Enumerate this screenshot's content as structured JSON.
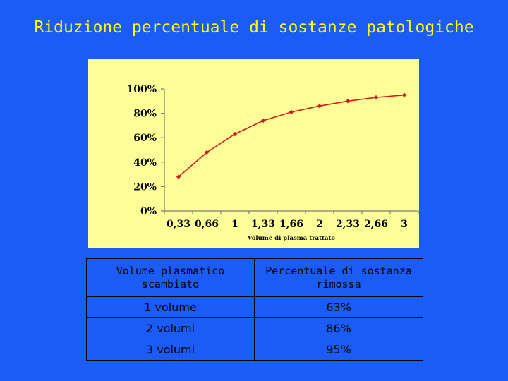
{
  "slide": {
    "title": "Riduzione percentuale di sostanze patologiche"
  },
  "colors": {
    "background": "#1a5cf5",
    "title": "#ffff00",
    "chart_panel": "#ffff99",
    "series": "#d81818"
  },
  "chart_data": {
    "type": "line",
    "title": "",
    "xlabel": "Volume di plasma trattato",
    "ylabel": "",
    "categories": [
      "0,33",
      "0,66",
      "1",
      "1,33",
      "1,66",
      "2",
      "2,33",
      "2,66",
      "3"
    ],
    "y_ticks": [
      "0%",
      "20%",
      "40%",
      "60%",
      "80%",
      "100%"
    ],
    "ylim": [
      0,
      100
    ],
    "grid": false,
    "legend": "none",
    "series": [
      {
        "values": [
          28,
          48,
          63,
          74,
          81,
          86,
          90,
          93,
          95
        ]
      }
    ]
  },
  "table": {
    "headers": [
      "Volume plasmatico scambiato",
      "Percentuale di sostanza rimossa"
    ],
    "rows": [
      [
        "1 volume",
        "63%"
      ],
      [
        "2 volumi",
        "86%"
      ],
      [
        "3 volumi",
        "95%"
      ]
    ]
  }
}
